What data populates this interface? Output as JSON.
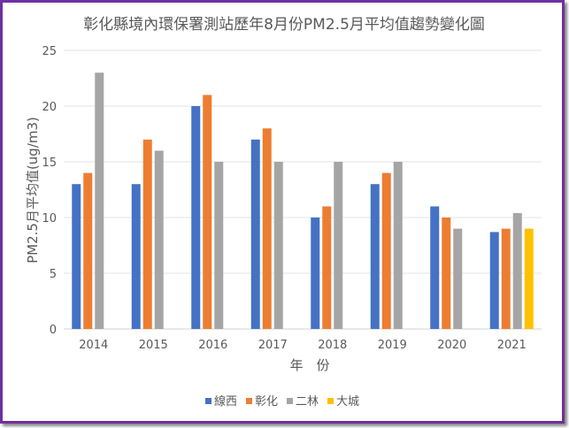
{
  "chart_data": {
    "type": "bar",
    "title": "彰化縣境內環保署測站歷年8月份PM2.5月平均值趨勢變化圖",
    "xlabel": "年　份",
    "ylabel": "PM2.5月平均值(ug/m3)",
    "categories": [
      "2014",
      "2015",
      "2016",
      "2017",
      "2018",
      "2019",
      "2020",
      "2021"
    ],
    "ylim": [
      0,
      25
    ],
    "yticks": [
      0,
      5,
      10,
      15,
      20,
      25
    ],
    "grid": true,
    "legend_position": "bottom",
    "series": [
      {
        "name": "線西",
        "color": "#4472c4",
        "values": [
          13,
          13,
          20,
          17,
          10,
          13,
          11,
          8.7
        ]
      },
      {
        "name": "彰化",
        "color": "#ed7d31",
        "values": [
          14,
          17,
          21,
          18,
          11,
          14,
          10,
          9
        ]
      },
      {
        "name": "二林",
        "color": "#a5a5a5",
        "values": [
          23,
          16,
          15,
          15,
          15,
          15,
          9,
          10.4
        ]
      },
      {
        "name": "大城",
        "color": "#ffc000",
        "values": [
          null,
          null,
          null,
          null,
          null,
          null,
          null,
          9
        ]
      }
    ]
  }
}
